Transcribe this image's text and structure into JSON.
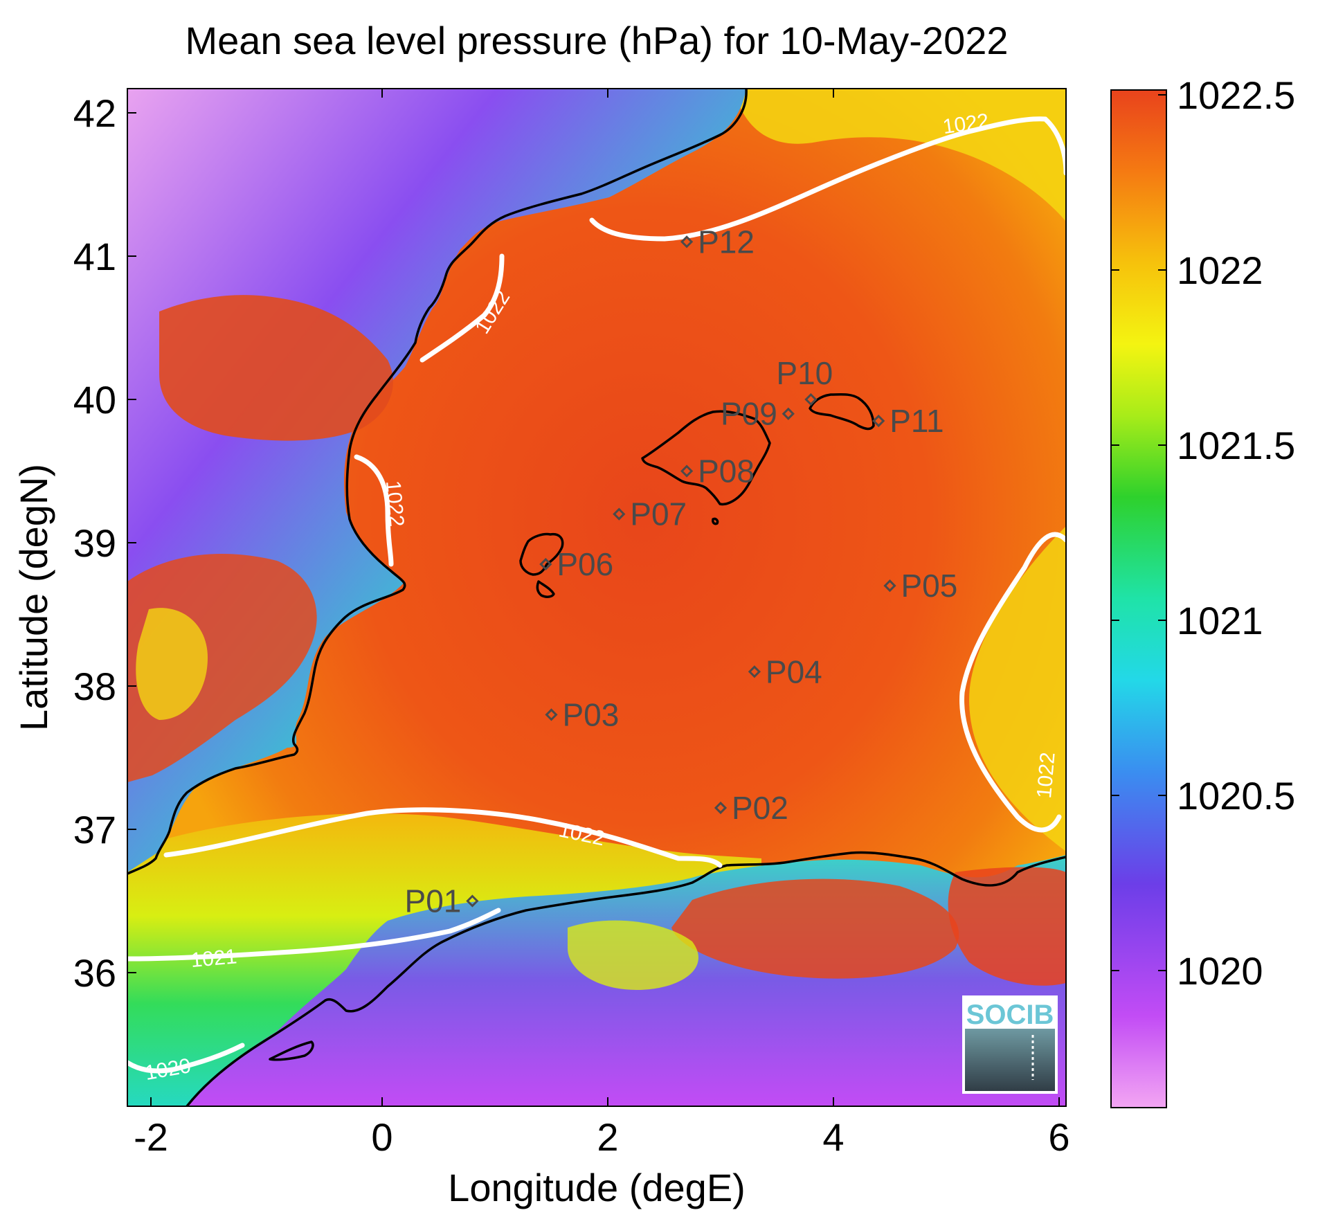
{
  "title": "Mean sea level pressure (hPa) for 10-May-2022",
  "xlabel": "Longitude (degE)",
  "ylabel": "Latitude (degN)",
  "x_ticks": [
    "-2",
    "0",
    "2",
    "4",
    "6"
  ],
  "y_ticks": [
    "42",
    "41",
    "40",
    "39",
    "38",
    "37",
    "36"
  ],
  "colorbar": {
    "ticks": [
      "1022.5",
      "1022",
      "1021.5",
      "1021",
      "1020.5",
      "1020"
    ],
    "range": [
      1019.6,
      1022.5
    ],
    "colors": [
      "#f3a6f3",
      "#c24cf5",
      "#6c3ee8",
      "#3a8ef0",
      "#23d8e8",
      "#1fe3a8",
      "#2ed12c",
      "#a8ec19",
      "#f4f411",
      "#f6c20c",
      "#f57a12",
      "#e9431c"
    ]
  },
  "contour_labels": [
    "1022",
    "1022",
    "1022",
    "1022",
    "1022",
    "1021",
    "1020"
  ],
  "stations": [
    {
      "name": "P01",
      "lon": 0.8,
      "lat": 36.5
    },
    {
      "name": "P02",
      "lon": 3.0,
      "lat": 37.15
    },
    {
      "name": "P03",
      "lon": 1.5,
      "lat": 37.8
    },
    {
      "name": "P04",
      "lon": 3.3,
      "lat": 38.1
    },
    {
      "name": "P05",
      "lon": 4.5,
      "lat": 38.7
    },
    {
      "name": "P06",
      "lon": 1.45,
      "lat": 38.85
    },
    {
      "name": "P07",
      "lon": 2.1,
      "lat": 39.2
    },
    {
      "name": "P08",
      "lon": 2.7,
      "lat": 39.5
    },
    {
      "name": "P09",
      "lon": 3.6,
      "lat": 39.9
    },
    {
      "name": "P10",
      "lon": 3.8,
      "lat": 40.0
    },
    {
      "name": "P11",
      "lon": 4.4,
      "lat": 39.85
    },
    {
      "name": "P12",
      "lon": 2.7,
      "lat": 41.1
    }
  ],
  "logo": "SOCIB",
  "colors": {
    "sea_field": "#ee5a14",
    "contour": "#ffffff",
    "coastline": "#000000",
    "station_marker": "#4a4a4a"
  }
}
